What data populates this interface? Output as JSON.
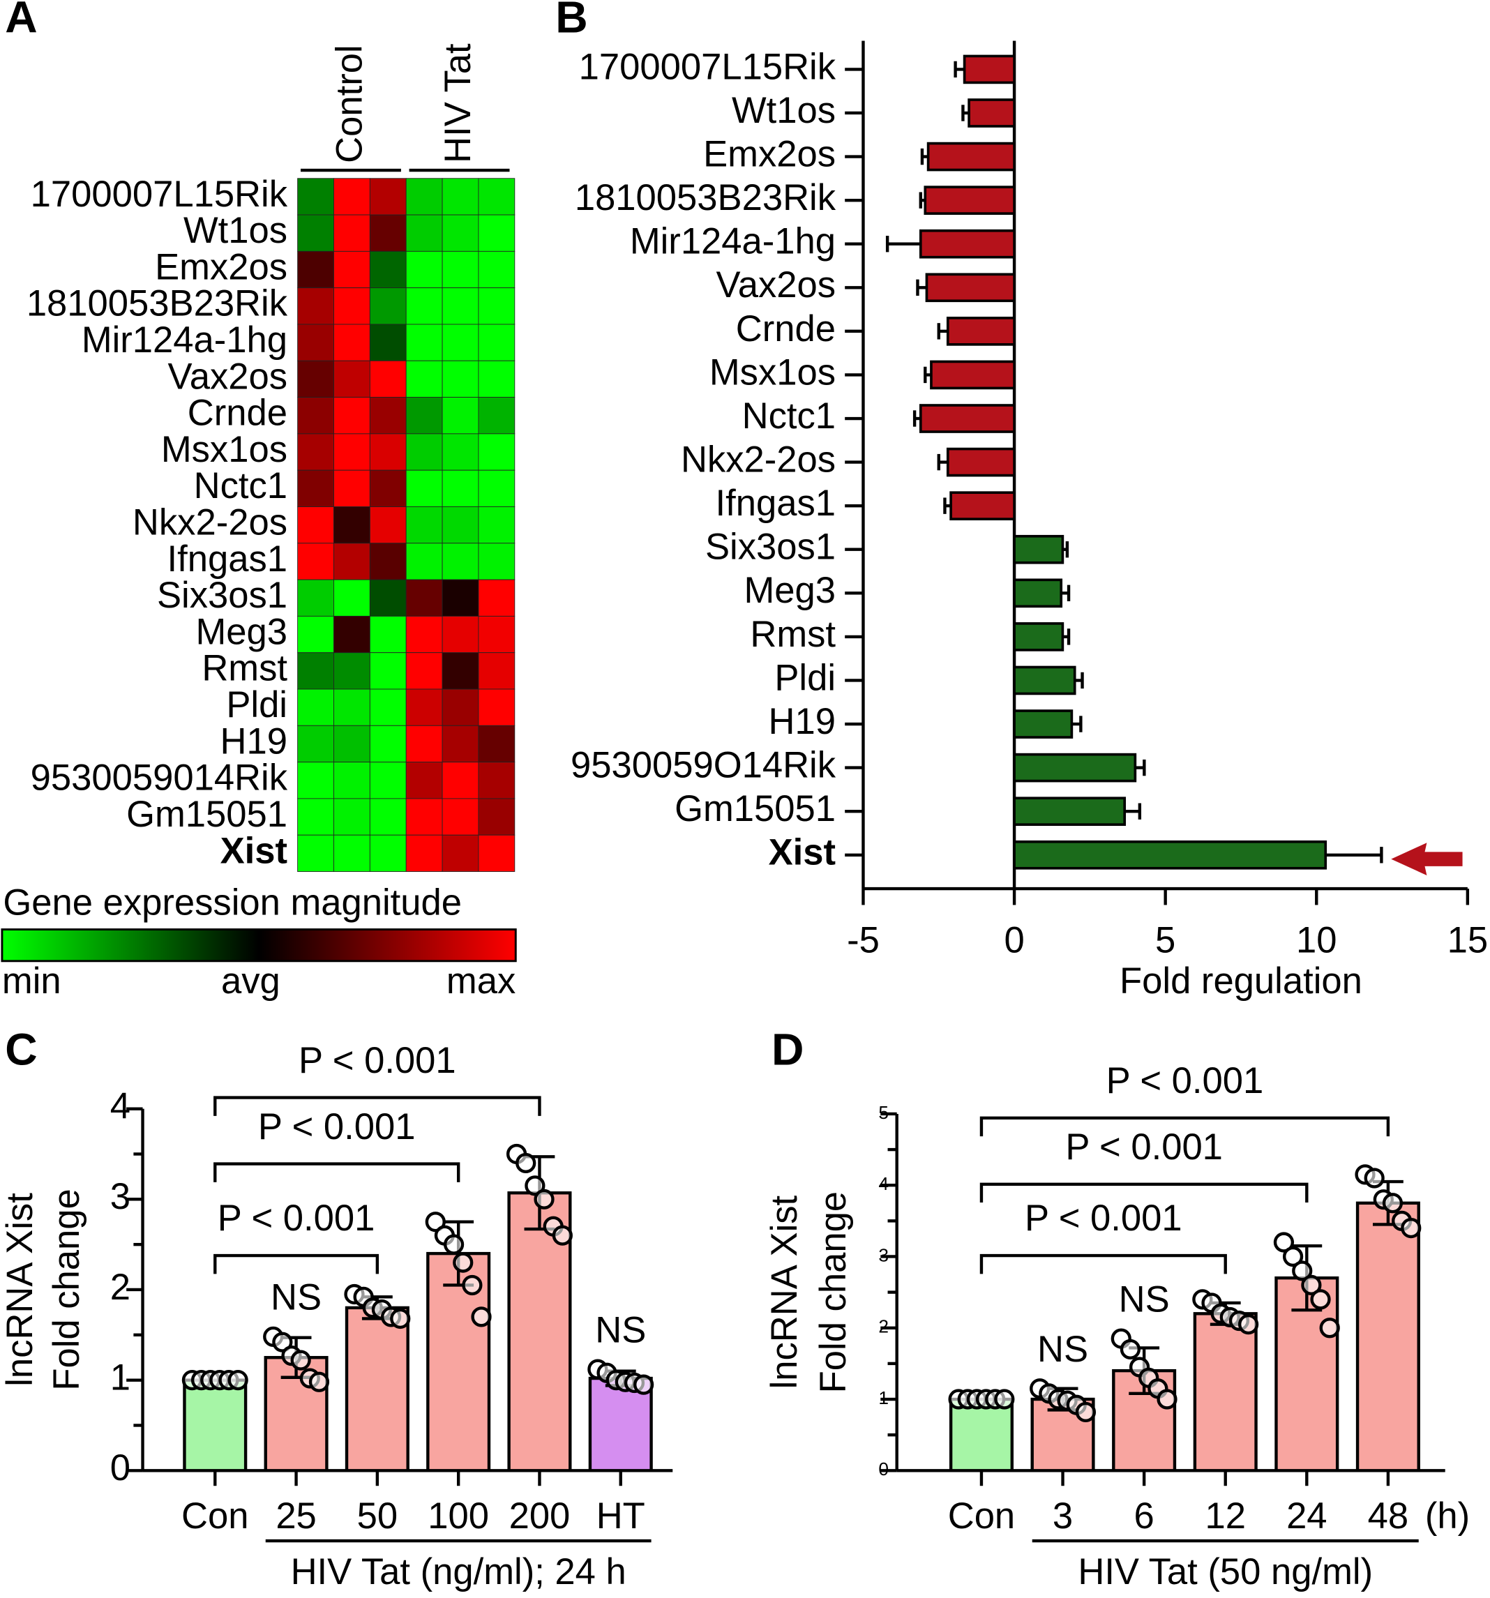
{
  "chart_data": [
    {
      "type": "heatmap",
      "panel": "A",
      "categories": [
        "1700007L15Rik",
        "Wt1os",
        "Emx2os",
        "1810053B23Rik",
        "Mir124a-1hg",
        "Vax2os",
        "Crnde",
        "Msx1os",
        "Nctc1",
        "Nkx2-2os",
        "Ifngas1",
        "Six3os1",
        "Meg3",
        "Rmst",
        "Pldi",
        "H19",
        "9530059014Rik",
        "Gm15051",
        "Xist"
      ],
      "groups": [
        "Control",
        "HIV Tat"
      ],
      "values": [
        [
          [
            -0.5,
            1,
            0.7
          ],
          [
            -0.8,
            -0.9,
            -0.9
          ]
        ],
        [
          [
            -0.5,
            1,
            0.4
          ],
          [
            -0.8,
            -0.9,
            -1
          ]
        ],
        [
          [
            0.3,
            1,
            -0.4
          ],
          [
            -1,
            -1,
            -1
          ]
        ],
        [
          [
            0.65,
            1,
            -0.6
          ],
          [
            -1,
            -1,
            -1
          ]
        ],
        [
          [
            0.6,
            1,
            -0.3
          ],
          [
            -1,
            -1,
            -1
          ]
        ],
        [
          [
            0.4,
            0.75,
            1
          ],
          [
            -1,
            -1,
            -1
          ]
        ],
        [
          [
            0.55,
            1,
            0.6
          ],
          [
            -0.6,
            -0.95,
            -0.7
          ]
        ],
        [
          [
            0.65,
            1,
            0.85
          ],
          [
            -0.8,
            -0.9,
            -1
          ]
        ],
        [
          [
            0.5,
            1,
            0.5
          ],
          [
            -1,
            -1,
            -1
          ]
        ],
        [
          [
            1,
            0.2,
            0.9
          ],
          [
            -0.85,
            -0.85,
            -0.95
          ]
        ],
        [
          [
            1,
            0.7,
            0.35
          ],
          [
            -0.95,
            -0.95,
            -0.95
          ]
        ],
        [
          [
            -0.8,
            -1,
            -0.3
          ],
          [
            0.4,
            0.1,
            1
          ]
        ],
        [
          [
            -1,
            0.2,
            -1
          ],
          [
            1,
            0.9,
            0.95
          ]
        ],
        [
          [
            -0.5,
            -0.55,
            -1
          ],
          [
            1,
            0.2,
            0.9
          ]
        ],
        [
          [
            -0.95,
            -0.9,
            -1
          ],
          [
            0.8,
            0.6,
            1
          ]
        ],
        [
          [
            -0.8,
            -0.75,
            -1
          ],
          [
            1,
            0.65,
            0.4
          ]
        ],
        [
          [
            -1,
            -0.95,
            -1
          ],
          [
            0.7,
            1,
            0.65
          ]
        ],
        [
          [
            -1,
            -0.95,
            -1
          ],
          [
            1,
            1,
            0.6
          ]
        ],
        [
          [
            -1,
            -1,
            -1
          ],
          [
            1,
            0.75,
            1
          ]
        ]
      ],
      "vlim": [
        -1,
        1
      ],
      "colors": [
        "#00ff00",
        "#000000",
        "#ff0000"
      ],
      "colorbar": {
        "title": "Gene expression magnitude",
        "labels": [
          "min",
          "avg",
          "max"
        ]
      }
    },
    {
      "type": "hbar",
      "panel": "B",
      "categories": [
        "1700007L15Rik",
        "Wt1os",
        "Emx2os",
        "1810053B23Rik",
        "Mir124a-1hg",
        "Vax2os",
        "Crnde",
        "Msx1os",
        "Nctc1",
        "Nkx2-2os",
        "Ifngas1",
        "Six3os1",
        "Meg3",
        "Rmst",
        "Pldi",
        "H19",
        "9530059O14Rik",
        "Gm15051",
        "Xist"
      ],
      "values": [
        -1.65,
        -1.5,
        -2.85,
        -2.95,
        -3.1,
        -2.9,
        -2.2,
        -2.75,
        -3.1,
        -2.2,
        -2.1,
        1.6,
        1.55,
        1.6,
        2.0,
        1.9,
        4.0,
        3.65,
        10.3
      ],
      "errors": [
        0.3,
        0.2,
        0.2,
        0.15,
        1.1,
        0.3,
        0.3,
        0.2,
        0.2,
        0.3,
        0.2,
        0.15,
        0.25,
        0.2,
        0.25,
        0.3,
        0.3,
        0.5,
        1.85
      ],
      "color_down": "#b5121b",
      "color_up": "#1b6b1b",
      "xlim": [
        -5,
        15
      ],
      "xticks": [
        -5,
        0,
        5,
        10,
        15
      ],
      "xlabel": "Fold regulation"
    },
    {
      "type": "bar",
      "panel": "C",
      "categories": [
        "Con",
        "25",
        "50",
        "100",
        "200",
        "HT"
      ],
      "values": [
        1.0,
        1.25,
        1.8,
        2.4,
        3.07,
        1.02
      ],
      "errors": [
        0,
        0.22,
        0.12,
        0.35,
        0.4,
        0.08
      ],
      "points": [
        [
          1,
          1,
          1,
          1,
          1,
          1
        ],
        [
          1.48,
          1.42,
          1.27,
          1.22,
          1.02,
          0.98
        ],
        [
          1.95,
          1.92,
          1.8,
          1.78,
          1.7,
          1.68
        ],
        [
          2.75,
          2.6,
          2.5,
          2.3,
          2.05,
          1.7
        ],
        [
          3.5,
          3.4,
          3.15,
          3.0,
          2.7,
          2.6
        ],
        [
          1.12,
          1.08,
          1.0,
          0.98,
          0.97,
          0.95
        ]
      ],
      "colors": [
        "#a6f5a6",
        "#f8a5a0",
        "#f8a5a0",
        "#f8a5a0",
        "#f8a5a0",
        "#d58ef0"
      ],
      "ylim": [
        0,
        4
      ],
      "yticks": [
        0,
        1,
        2,
        3,
        4
      ],
      "yminorticks": [
        0.5,
        1.5,
        2.5,
        3.5
      ],
      "ylabel": [
        "lncRNA Xist",
        "Fold change"
      ],
      "xlabel": "HIV Tat (ng/ml); 24 h",
      "annotations": [
        {
          "label": "NS",
          "at": 1
        },
        {
          "label": "NS",
          "at": 5
        }
      ],
      "brackets": [
        {
          "label": "P < 0.001",
          "span": [
            0,
            2
          ]
        },
        {
          "label": "P < 0.001",
          "span": [
            0,
            3
          ]
        },
        {
          "label": "P < 0.001",
          "span": [
            0,
            4
          ]
        }
      ]
    },
    {
      "type": "bar",
      "panel": "D",
      "categories": [
        "Con",
        "3",
        "6",
        "12",
        "24",
        "48"
      ],
      "unit_label": "(h)",
      "values": [
        1.0,
        1.0,
        1.4,
        2.2,
        2.7,
        3.75
      ],
      "errors": [
        0,
        0.15,
        0.32,
        0.15,
        0.45,
        0.3
      ],
      "points": [
        [
          1,
          1,
          1,
          1,
          1,
          1
        ],
        [
          1.15,
          1.08,
          1.0,
          0.98,
          0.92,
          0.82
        ],
        [
          1.85,
          1.7,
          1.45,
          1.3,
          1.15,
          1.0
        ],
        [
          2.4,
          2.35,
          2.2,
          2.15,
          2.1,
          2.05
        ],
        [
          3.2,
          3.0,
          2.8,
          2.6,
          2.4,
          2.0
        ],
        [
          4.15,
          4.1,
          3.8,
          3.75,
          3.5,
          3.4
        ]
      ],
      "colors": [
        "#a6f5a6",
        "#f8a5a0",
        "#f8a5a0",
        "#f8a5a0",
        "#f8a5a0",
        "#f8a5a0"
      ],
      "ylim": [
        0,
        5
      ],
      "yticks": [
        0,
        1,
        2,
        3,
        4,
        5
      ],
      "yminorticks": [
        0.5,
        1.5,
        2.5,
        3.5,
        4.5
      ],
      "ylabel": [
        "lncRNA Xist",
        "Fold change"
      ],
      "xlabel": "HIV Tat (50 ng/ml)",
      "annotations": [
        {
          "label": "NS",
          "at": 1
        },
        {
          "label": "NS",
          "at": 2
        }
      ],
      "brackets": [
        {
          "label": "P < 0.001",
          "span": [
            0,
            3
          ]
        },
        {
          "label": "P < 0.001",
          "span": [
            0,
            4
          ]
        },
        {
          "label": "P < 0.001",
          "span": [
            0,
            5
          ]
        }
      ]
    }
  ]
}
